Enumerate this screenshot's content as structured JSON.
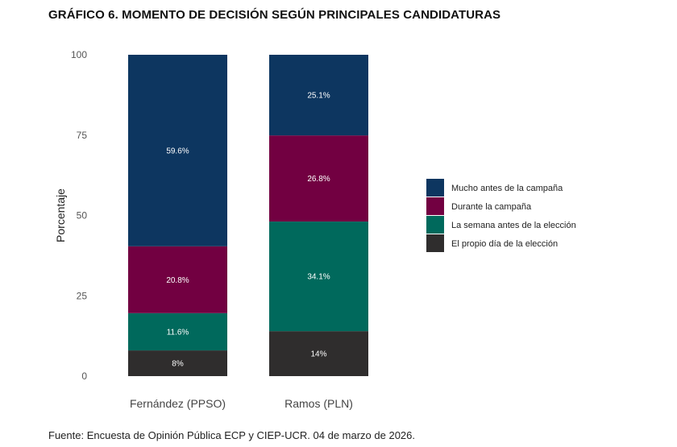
{
  "title": "GRÁFICO 6. MOMENTO DE DECISIÓN SEGÚN PRINCIPALES CANDIDATURAS",
  "source": "Fuente: Encuesta de Opinión Pública ECP y CIEP-UCR. 04 de marzo de 2026.",
  "colors": {
    "mucho_antes": "#0d3660",
    "durante": "#720041",
    "semana_antes": "#00695c",
    "propio_dia": "#2f2d2d"
  },
  "chart_data": {
    "type": "bar",
    "stacked": true,
    "categories": [
      "Fernández (PPSO)",
      "Ramos (PLN)"
    ],
    "ylabel": "Porcentaje",
    "xlabel": "",
    "ylim": [
      0,
      100
    ],
    "yticks": [
      "0",
      "25",
      "50",
      "75",
      "100"
    ],
    "grid": false,
    "legend_position": "right",
    "series": [
      {
        "name": "El propio día de la elección",
        "values": [
          8,
          14
        ],
        "labels": [
          "8%",
          "14%"
        ],
        "color": "#2f2d2d"
      },
      {
        "name": "La semana antes de la elección",
        "values": [
          11.6,
          34.1
        ],
        "labels": [
          "11.6%",
          "34.1%"
        ],
        "color": "#00695c"
      },
      {
        "name": "Durante la campaña",
        "values": [
          20.8,
          26.8
        ],
        "labels": [
          "20.8%",
          "26.8%"
        ],
        "color": "#720041"
      },
      {
        "name": "Mucho antes de la campaña",
        "values": [
          59.6,
          25.1
        ],
        "labels": [
          "59.6%",
          "25.1%"
        ],
        "color": "#0d3660"
      }
    ],
    "legend_order": [
      "Mucho antes de la campaña",
      "Durante la campaña",
      "La semana antes de la elección",
      "El propio día de la elección"
    ]
  }
}
